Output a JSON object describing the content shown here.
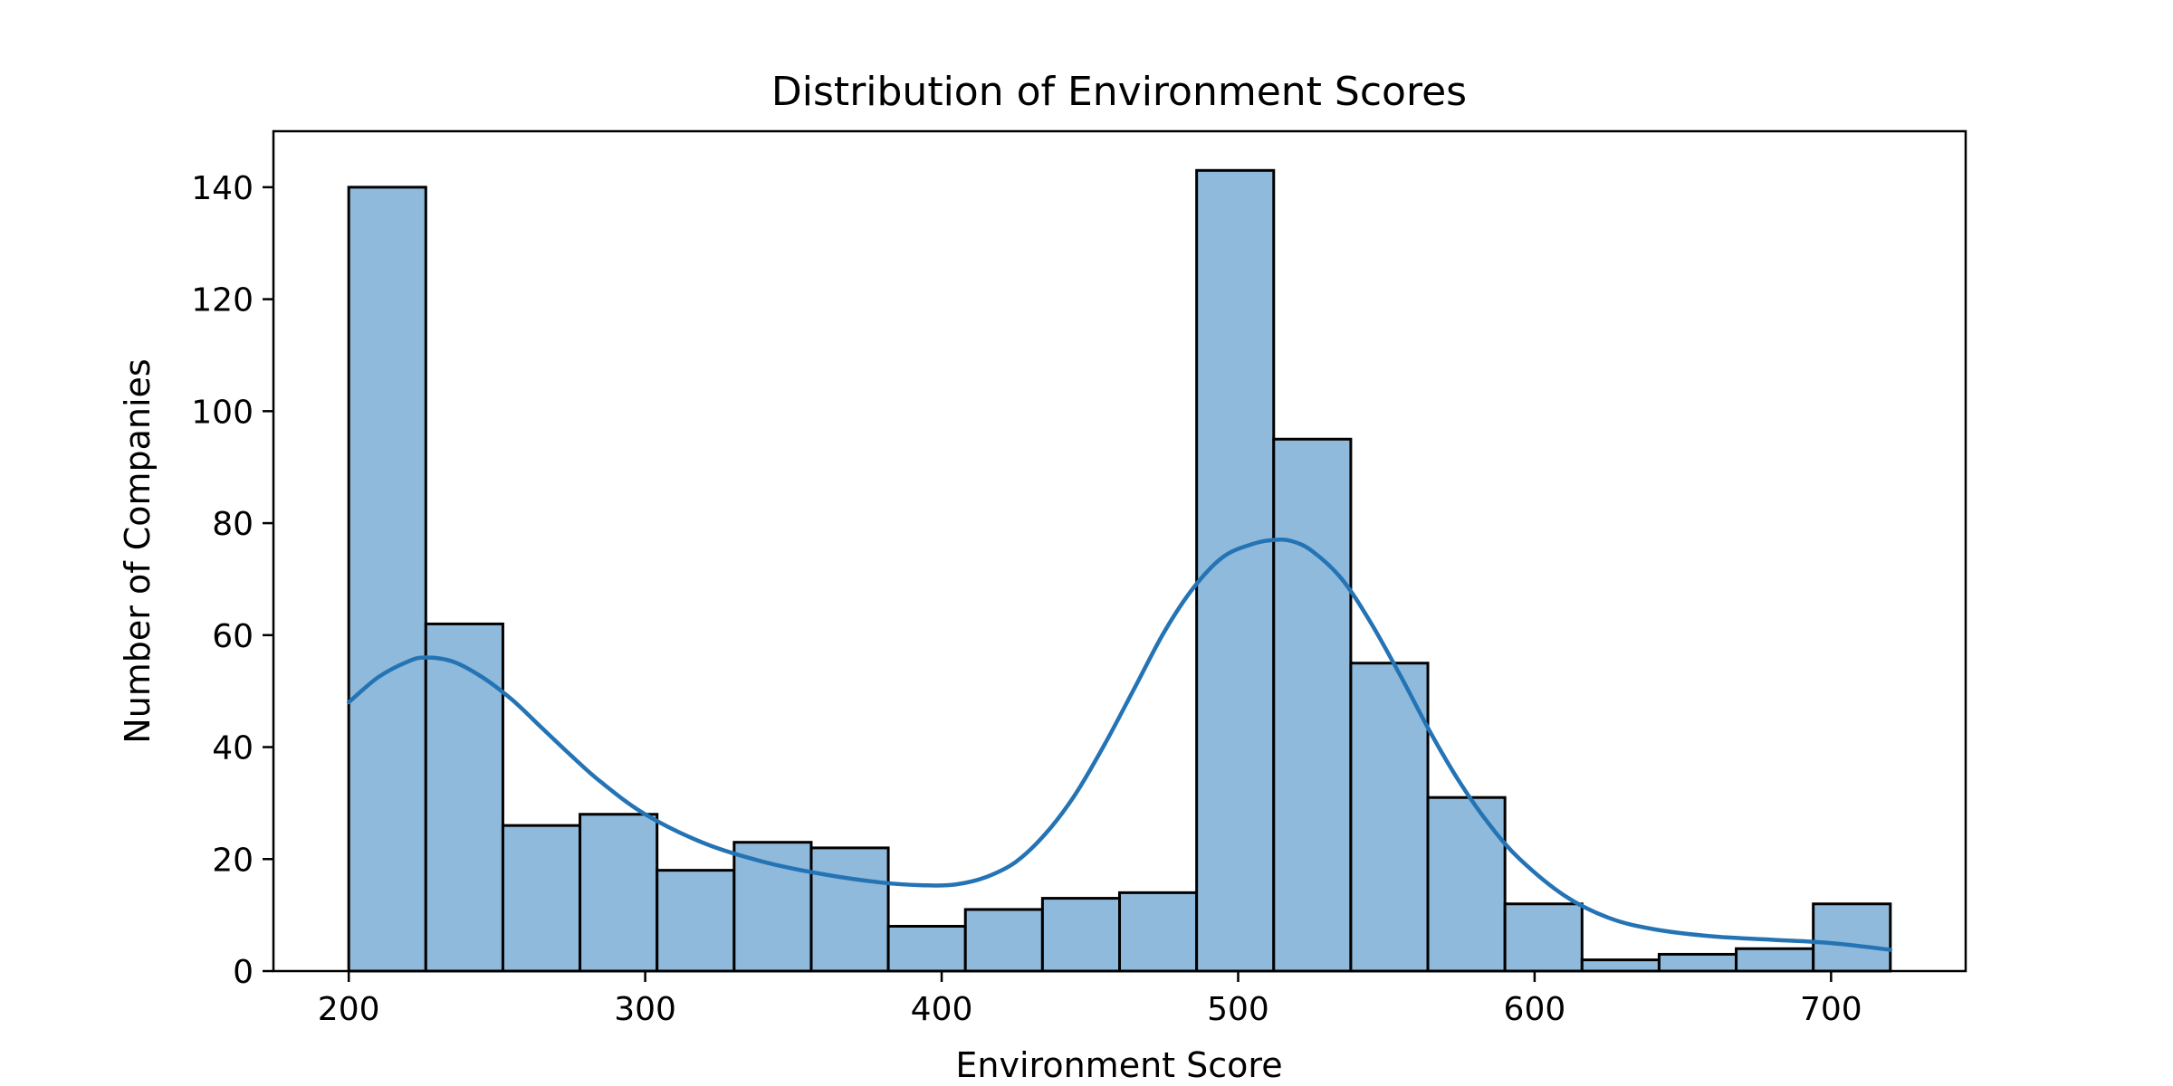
{
  "chart_data": {
    "type": "bar",
    "subtype": "histogram",
    "title": "Distribution of Environment Scores",
    "xlabel": "Environment Score",
    "ylabel": "Number of Companies",
    "xlim": [
      174.6,
      745.4
    ],
    "ylim": [
      0,
      150
    ],
    "xticks": [
      200,
      300,
      400,
      500,
      600,
      700
    ],
    "yticks": [
      0,
      20,
      40,
      60,
      80,
      100,
      120,
      140
    ],
    "grid": false,
    "legend": "none",
    "bin_edges": [
      200,
      226,
      252,
      278,
      304,
      330,
      356,
      382,
      408,
      434,
      460,
      486,
      512,
      538,
      564,
      590,
      616,
      642,
      668,
      694,
      720
    ],
    "counts": [
      140,
      62,
      26,
      28,
      18,
      23,
      22,
      8,
      11,
      13,
      14,
      143,
      95,
      55,
      31,
      12,
      2,
      3,
      4,
      12
    ],
    "kde": {
      "x": [
        200,
        210,
        220,
        226,
        235,
        245,
        255,
        265,
        275,
        285,
        300,
        320,
        340,
        360,
        380,
        395,
        405,
        415,
        425,
        435,
        445,
        455,
        465,
        475,
        485,
        495,
        505,
        512,
        518,
        525,
        535,
        545,
        555,
        565,
        575,
        585,
        595,
        610,
        625,
        640,
        660,
        680,
        700,
        720
      ],
      "y": [
        48,
        52.5,
        55.3,
        56,
        55.3,
        52.5,
        48.5,
        43.5,
        38.5,
        33.8,
        28,
        22.8,
        19.5,
        17.3,
        15.8,
        15.3,
        15.5,
        16.8,
        19.5,
        24.5,
        31.5,
        40.5,
        50.5,
        60.5,
        68.5,
        74,
        76.3,
        77,
        76.8,
        75,
        70,
        62,
        52.5,
        42.5,
        33.5,
        26,
        20,
        13.5,
        9.5,
        7.5,
        6.2,
        5.6,
        5,
        3.8
      ]
    },
    "colors": {
      "bar_fill": "#8fbadb",
      "bar_edge": "#000000",
      "kde_line": "#2474b5"
    }
  }
}
